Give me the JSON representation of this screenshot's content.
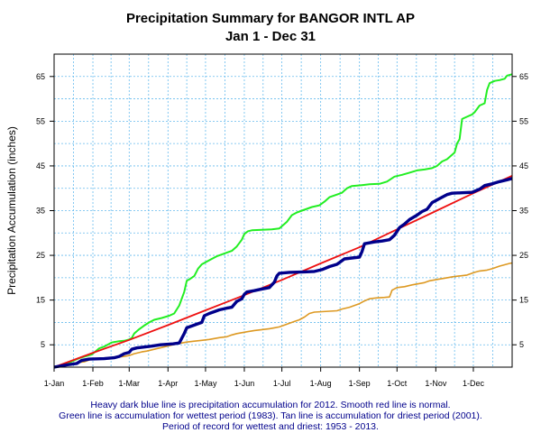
{
  "chart_data": {
    "type": "line",
    "title": "Precipitation Summary for BANGOR INTL AP",
    "subtitle": "Jan 1 - Dec 31",
    "ylabel": "Precipitation Accumulation (inches)",
    "xlabel": "",
    "xlim": [
      0,
      366
    ],
    "ylim": [
      0,
      70
    ],
    "y_ticks": [
      5,
      15,
      25,
      35,
      45,
      55,
      65
    ],
    "x_tick_positions": [
      0,
      31,
      60,
      91,
      121,
      152,
      182,
      213,
      244,
      274,
      305,
      335
    ],
    "x_tick_labels": [
      "1-Jan",
      "1-Feb",
      "1-Mar",
      "1-Apr",
      "1-May",
      "1-Jun",
      "1-Jul",
      "1-Aug",
      "1-Sep",
      "1-Oct",
      "1-Nov",
      "1-Dec"
    ],
    "grid": true,
    "series": [
      {
        "key": "normal",
        "color": "#ee1111",
        "points": [
          [
            0,
            0
          ],
          [
            31,
            3.2
          ],
          [
            60,
            6.1
          ],
          [
            91,
            9.4
          ],
          [
            121,
            12.7
          ],
          [
            152,
            16.1
          ],
          [
            182,
            19.5
          ],
          [
            213,
            23.2
          ],
          [
            244,
            26.8
          ],
          [
            274,
            30.8
          ],
          [
            305,
            34.9
          ],
          [
            335,
            38.9
          ],
          [
            366,
            42.8
          ]
        ]
      },
      {
        "key": "2012",
        "color": "#00008b",
        "points": [
          [
            0,
            0
          ],
          [
            10,
            0.5
          ],
          [
            18,
            0.8
          ],
          [
            22,
            1.5
          ],
          [
            28,
            1.8
          ],
          [
            40,
            1.9
          ],
          [
            48,
            2.1
          ],
          [
            52,
            2.4
          ],
          [
            56,
            3.0
          ],
          [
            60,
            3.3
          ],
          [
            62,
            4.0
          ],
          [
            66,
            4.3
          ],
          [
            72,
            4.5
          ],
          [
            78,
            4.7
          ],
          [
            85,
            5.0
          ],
          [
            95,
            5.2
          ],
          [
            100,
            5.4
          ],
          [
            104,
            7.5
          ],
          [
            106,
            8.8
          ],
          [
            110,
            9.2
          ],
          [
            114,
            9.6
          ],
          [
            118,
            10.0
          ],
          [
            120,
            11.5
          ],
          [
            124,
            12.0
          ],
          [
            128,
            12.4
          ],
          [
            132,
            12.8
          ],
          [
            138,
            13.2
          ],
          [
            142,
            13.4
          ],
          [
            146,
            14.7
          ],
          [
            150,
            15.3
          ],
          [
            152,
            16.3
          ],
          [
            154,
            16.8
          ],
          [
            160,
            17.1
          ],
          [
            165,
            17.4
          ],
          [
            172,
            17.8
          ],
          [
            176,
            19.0
          ],
          [
            178,
            20.4
          ],
          [
            180,
            21.0
          ],
          [
            188,
            21.2
          ],
          [
            200,
            21.3
          ],
          [
            208,
            21.4
          ],
          [
            214,
            21.8
          ],
          [
            220,
            22.5
          ],
          [
            226,
            23.0
          ],
          [
            232,
            24.2
          ],
          [
            238,
            24.4
          ],
          [
            244,
            24.6
          ],
          [
            246,
            25.8
          ],
          [
            248,
            27.6
          ],
          [
            256,
            28.0
          ],
          [
            262,
            28.2
          ],
          [
            268,
            28.5
          ],
          [
            272,
            29.5
          ],
          [
            276,
            31.2
          ],
          [
            280,
            32.0
          ],
          [
            284,
            33.0
          ],
          [
            290,
            34.0
          ],
          [
            294,
            34.8
          ],
          [
            298,
            35.3
          ],
          [
            302,
            36.8
          ],
          [
            306,
            37.4
          ],
          [
            310,
            38.0
          ],
          [
            314,
            38.6
          ],
          [
            318,
            38.9
          ],
          [
            326,
            39.0
          ],
          [
            334,
            39.1
          ],
          [
            340,
            39.8
          ],
          [
            344,
            40.6
          ],
          [
            350,
            41.0
          ],
          [
            356,
            41.5
          ],
          [
            362,
            41.9
          ],
          [
            366,
            42.2
          ]
        ]
      },
      {
        "key": "wettest",
        "color": "#22ee22",
        "points": [
          [
            0,
            0
          ],
          [
            12,
            1.0
          ],
          [
            20,
            2.0
          ],
          [
            30,
            2.8
          ],
          [
            36,
            4.2
          ],
          [
            40,
            4.6
          ],
          [
            46,
            5.5
          ],
          [
            52,
            5.8
          ],
          [
            56,
            5.9
          ],
          [
            60,
            6.2
          ],
          [
            62,
            6.5
          ],
          [
            64,
            7.5
          ],
          [
            68,
            8.5
          ],
          [
            72,
            9.3
          ],
          [
            76,
            10.0
          ],
          [
            80,
            10.6
          ],
          [
            86,
            11.0
          ],
          [
            92,
            11.5
          ],
          [
            96,
            12.0
          ],
          [
            100,
            13.8
          ],
          [
            104,
            16.8
          ],
          [
            106,
            19.3
          ],
          [
            108,
            19.6
          ],
          [
            112,
            20.4
          ],
          [
            115,
            22.0
          ],
          [
            118,
            23.0
          ],
          [
            122,
            23.6
          ],
          [
            126,
            24.2
          ],
          [
            130,
            24.8
          ],
          [
            134,
            25.2
          ],
          [
            138,
            25.6
          ],
          [
            142,
            26.0
          ],
          [
            146,
            27.0
          ],
          [
            150,
            28.5
          ],
          [
            152,
            29.8
          ],
          [
            155,
            30.4
          ],
          [
            158,
            30.6
          ],
          [
            166,
            30.7
          ],
          [
            174,
            30.8
          ],
          [
            180,
            31.0
          ],
          [
            186,
            32.5
          ],
          [
            190,
            34.0
          ],
          [
            194,
            34.6
          ],
          [
            198,
            35.0
          ],
          [
            202,
            35.4
          ],
          [
            206,
            35.8
          ],
          [
            212,
            36.2
          ],
          [
            216,
            37.0
          ],
          [
            220,
            38.0
          ],
          [
            226,
            38.6
          ],
          [
            230,
            39.0
          ],
          [
            234,
            40.0
          ],
          [
            238,
            40.5
          ],
          [
            246,
            40.7
          ],
          [
            252,
            40.9
          ],
          [
            260,
            41.0
          ],
          [
            266,
            41.5
          ],
          [
            272,
            42.6
          ],
          [
            278,
            43.0
          ],
          [
            284,
            43.5
          ],
          [
            290,
            44.0
          ],
          [
            296,
            44.2
          ],
          [
            302,
            44.5
          ],
          [
            306,
            45.0
          ],
          [
            310,
            46.0
          ],
          [
            314,
            46.5
          ],
          [
            316,
            47.0
          ],
          [
            320,
            48.0
          ],
          [
            322,
            50.0
          ],
          [
            324,
            51.0
          ],
          [
            326,
            55.5
          ],
          [
            330,
            56.0
          ],
          [
            334,
            56.5
          ],
          [
            336,
            57.0
          ],
          [
            340,
            58.5
          ],
          [
            344,
            59.0
          ],
          [
            346,
            62.0
          ],
          [
            348,
            63.5
          ],
          [
            352,
            64.0
          ],
          [
            356,
            64.2
          ],
          [
            360,
            64.5
          ],
          [
            362,
            65.2
          ],
          [
            366,
            65.5
          ]
        ]
      },
      {
        "key": "driest",
        "color": "#dd9922",
        "points": [
          [
            0,
            0
          ],
          [
            10,
            0.6
          ],
          [
            18,
            1.0
          ],
          [
            24,
            1.2
          ],
          [
            30,
            1.8
          ],
          [
            40,
            2.0
          ],
          [
            50,
            2.2
          ],
          [
            56,
            2.4
          ],
          [
            60,
            2.6
          ],
          [
            64,
            3.0
          ],
          [
            70,
            3.4
          ],
          [
            74,
            3.6
          ],
          [
            80,
            4.0
          ],
          [
            86,
            4.4
          ],
          [
            92,
            4.8
          ],
          [
            98,
            5.2
          ],
          [
            102,
            5.4
          ],
          [
            106,
            5.6
          ],
          [
            112,
            5.8
          ],
          [
            118,
            6.0
          ],
          [
            124,
            6.2
          ],
          [
            128,
            6.4
          ],
          [
            132,
            6.6
          ],
          [
            138,
            6.8
          ],
          [
            142,
            7.2
          ],
          [
            146,
            7.5
          ],
          [
            150,
            7.7
          ],
          [
            154,
            7.9
          ],
          [
            160,
            8.2
          ],
          [
            166,
            8.4
          ],
          [
            172,
            8.6
          ],
          [
            176,
            8.8
          ],
          [
            180,
            9.0
          ],
          [
            184,
            9.4
          ],
          [
            188,
            9.8
          ],
          [
            192,
            10.2
          ],
          [
            196,
            10.6
          ],
          [
            200,
            11.2
          ],
          [
            204,
            12.0
          ],
          [
            208,
            12.3
          ],
          [
            214,
            12.4
          ],
          [
            220,
            12.5
          ],
          [
            226,
            12.6
          ],
          [
            230,
            13.0
          ],
          [
            236,
            13.4
          ],
          [
            240,
            13.8
          ],
          [
            244,
            14.2
          ],
          [
            248,
            14.8
          ],
          [
            252,
            15.3
          ],
          [
            258,
            15.5
          ],
          [
            264,
            15.6
          ],
          [
            268,
            15.7
          ],
          [
            270,
            17.2
          ],
          [
            274,
            17.8
          ],
          [
            280,
            18.0
          ],
          [
            286,
            18.4
          ],
          [
            290,
            18.6
          ],
          [
            296,
            18.9
          ],
          [
            300,
            19.3
          ],
          [
            306,
            19.6
          ],
          [
            312,
            19.9
          ],
          [
            318,
            20.2
          ],
          [
            324,
            20.4
          ],
          [
            330,
            20.6
          ],
          [
            336,
            21.2
          ],
          [
            340,
            21.5
          ],
          [
            346,
            21.7
          ],
          [
            350,
            22.0
          ],
          [
            356,
            22.6
          ],
          [
            360,
            22.9
          ],
          [
            364,
            23.2
          ],
          [
            366,
            23.3
          ]
        ]
      }
    ]
  },
  "caption": {
    "line1": "Heavy dark blue line is precipitation accumulation for 2012. Smooth red line is normal.",
    "line2": "Green line is accumulation for wettest period (1983).    Tan line is accumulation for driest period (2001).",
    "line3": "Period of record for wettest and driest: 1953 - 2013."
  }
}
